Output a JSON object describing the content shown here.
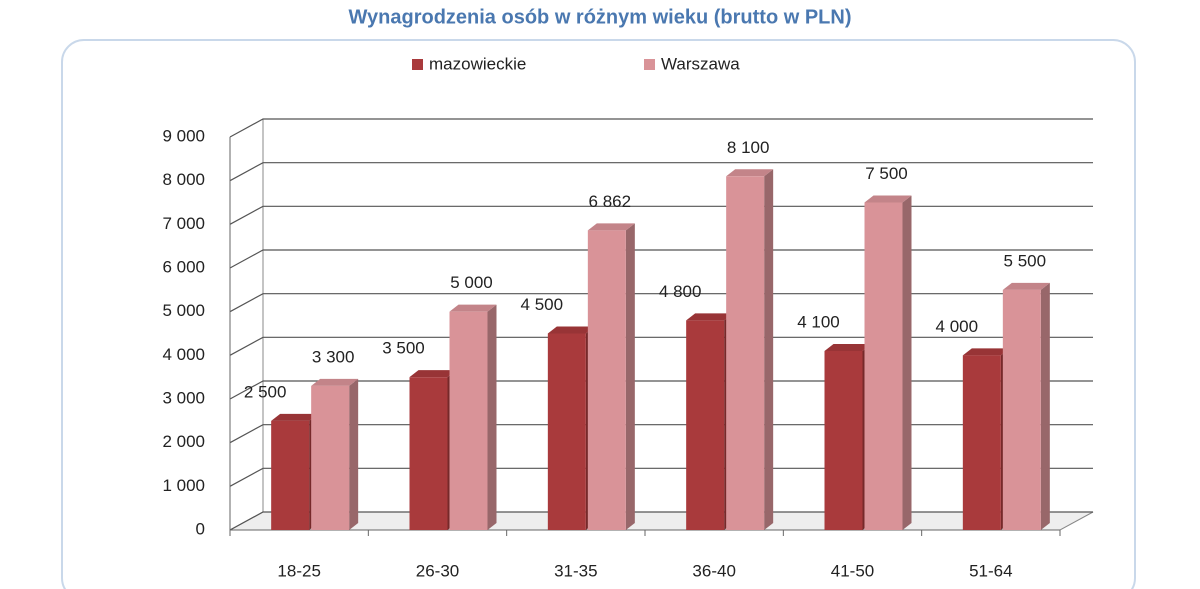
{
  "chart_data": {
    "type": "bar3d",
    "title": "Wynagrodzenia osób w różnym wieku (brutto w PLN)",
    "categories": [
      "18-25",
      "26-30",
      "31-35",
      "36-40",
      "41-50",
      "51-64"
    ],
    "series": [
      {
        "name": "mazowieckie",
        "color": "#a93a3c",
        "values": [
          2500,
          3500,
          4500,
          4800,
          4100,
          4000
        ],
        "value_labels": [
          "2 500",
          "3 500",
          "4 500",
          "4 800",
          "4 100",
          "4 000"
        ]
      },
      {
        "name": "Warszawa",
        "color": "#d99398",
        "values": [
          3300,
          5000,
          6862,
          8100,
          7500,
          5500
        ],
        "value_labels": [
          "3 300",
          "5 000",
          "6 862",
          "8 100",
          "7 500",
          "5 500"
        ]
      }
    ],
    "ylim": [
      0,
      9000
    ],
    "yticks": [
      0,
      {
        "value": 1000,
        "label": "1 000"
      },
      {
        "value": 2000,
        "label": "2 000"
      },
      {
        "value": 3000,
        "label": "3 000"
      },
      {
        "value": 4000,
        "label": "4 000"
      },
      {
        "value": 5000,
        "label": "5 000"
      },
      {
        "value": 6000,
        "label": "6 000"
      },
      {
        "value": 7000,
        "label": "7 000"
      },
      {
        "value": 8000,
        "label": "8 000"
      },
      {
        "value": 9000,
        "label": "9 000"
      }
    ],
    "grid": true,
    "legend": "top"
  }
}
